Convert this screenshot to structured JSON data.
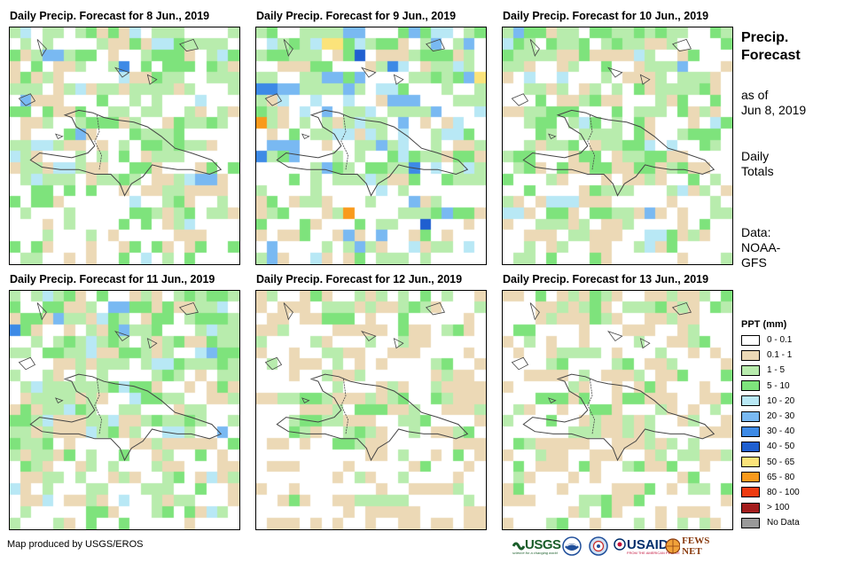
{
  "panels": [
    {
      "title": "Daily Precip. Forecast for 8 Jun., 2019",
      "seed": 11,
      "wet": 0.55,
      "dry": 0.15,
      "heavy": 0.05
    },
    {
      "title": "Daily Precip. Forecast for 9 Jun., 2019",
      "seed": 23,
      "wet": 0.6,
      "dry": 0.12,
      "heavy": 0.12
    },
    {
      "title": "Daily Precip. Forecast for 10 Jun., 2019",
      "seed": 37,
      "wet": 0.45,
      "dry": 0.22,
      "heavy": 0.03
    },
    {
      "title": "Daily Precip. Forecast for 11 Jun., 2019",
      "seed": 41,
      "wet": 0.6,
      "dry": 0.18,
      "heavy": 0.05
    },
    {
      "title": "Daily Precip. Forecast for 12 Jun., 2019",
      "seed": 53,
      "wet": 0.2,
      "dry": 0.3,
      "heavy": 0.0
    },
    {
      "title": "Daily Precip. Forecast for 13 Jun., 2019",
      "seed": 67,
      "wet": 0.22,
      "dry": 0.28,
      "heavy": 0.0
    }
  ],
  "sidebar": {
    "title_line1": "Precip.",
    "title_line2": "Forecast",
    "asof_line1": "as of",
    "asof_line2": "Jun 8, 2019",
    "daily_line1": "Daily",
    "daily_line2": "Totals",
    "data_line1": "Data:",
    "data_line2": "NOAA-",
    "data_line3": "GFS"
  },
  "legend": {
    "title": "PPT (mm)",
    "items": [
      {
        "label": "0 - 0.1",
        "color": "#ffffff"
      },
      {
        "label": "0.1 - 1",
        "color": "#ecd9b6"
      },
      {
        "label": "1 - 5",
        "color": "#b8ecad"
      },
      {
        "label": "5 - 10",
        "color": "#7ee37c"
      },
      {
        "label": "10 - 20",
        "color": "#b8e8f5"
      },
      {
        "label": "20 - 30",
        "color": "#79b9f2"
      },
      {
        "label": "30 - 40",
        "color": "#3d8ae6"
      },
      {
        "label": "40 - 50",
        "color": "#1f5fd0"
      },
      {
        "label": "50 - 65",
        "color": "#fbe37a"
      },
      {
        "label": "65 - 80",
        "color": "#f99a1c"
      },
      {
        "label": "80 - 100",
        "color": "#ee3b11"
      },
      {
        "label": "> 100",
        "color": "#a31d1d"
      },
      {
        "label": "No Data",
        "color": "#999999"
      }
    ]
  },
  "credit": "Map produced by USGS/EROS",
  "logos": {
    "usgs": "USGS",
    "usgs_tagline": "science for a changing world",
    "usaid": "USAID",
    "usaid_tagline": "FROM THE AMERICAN PEOPLE",
    "fewsnet": "FEWS NET"
  }
}
